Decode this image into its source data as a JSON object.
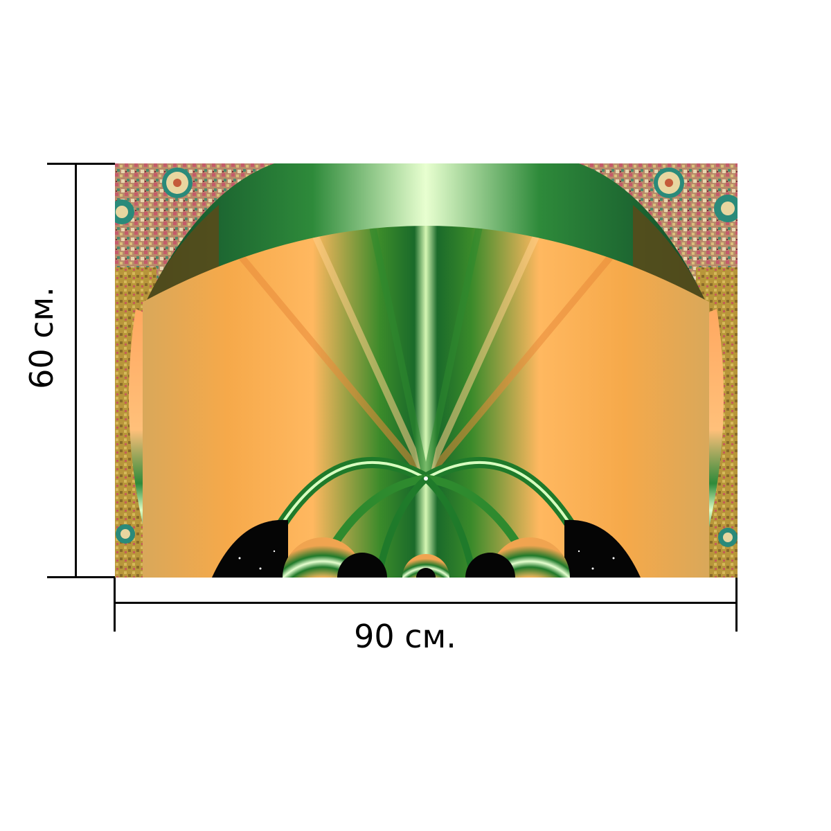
{
  "dimensions": {
    "width_label": "90 см.",
    "height_label": "60 см."
  },
  "artwork": {
    "description_icon": "fractal-print-icon",
    "palette": {
      "orange": "#f7a64a",
      "light_orange": "#ffc27a",
      "green": "#2e8a2e",
      "dark_green": "#0f5a2a",
      "light_green": "#d8f5b0",
      "brown": "#6b4a18",
      "black": "#050505",
      "mosaic_pink": "#c97a7a",
      "mosaic_gold": "#b89a3a"
    }
  }
}
